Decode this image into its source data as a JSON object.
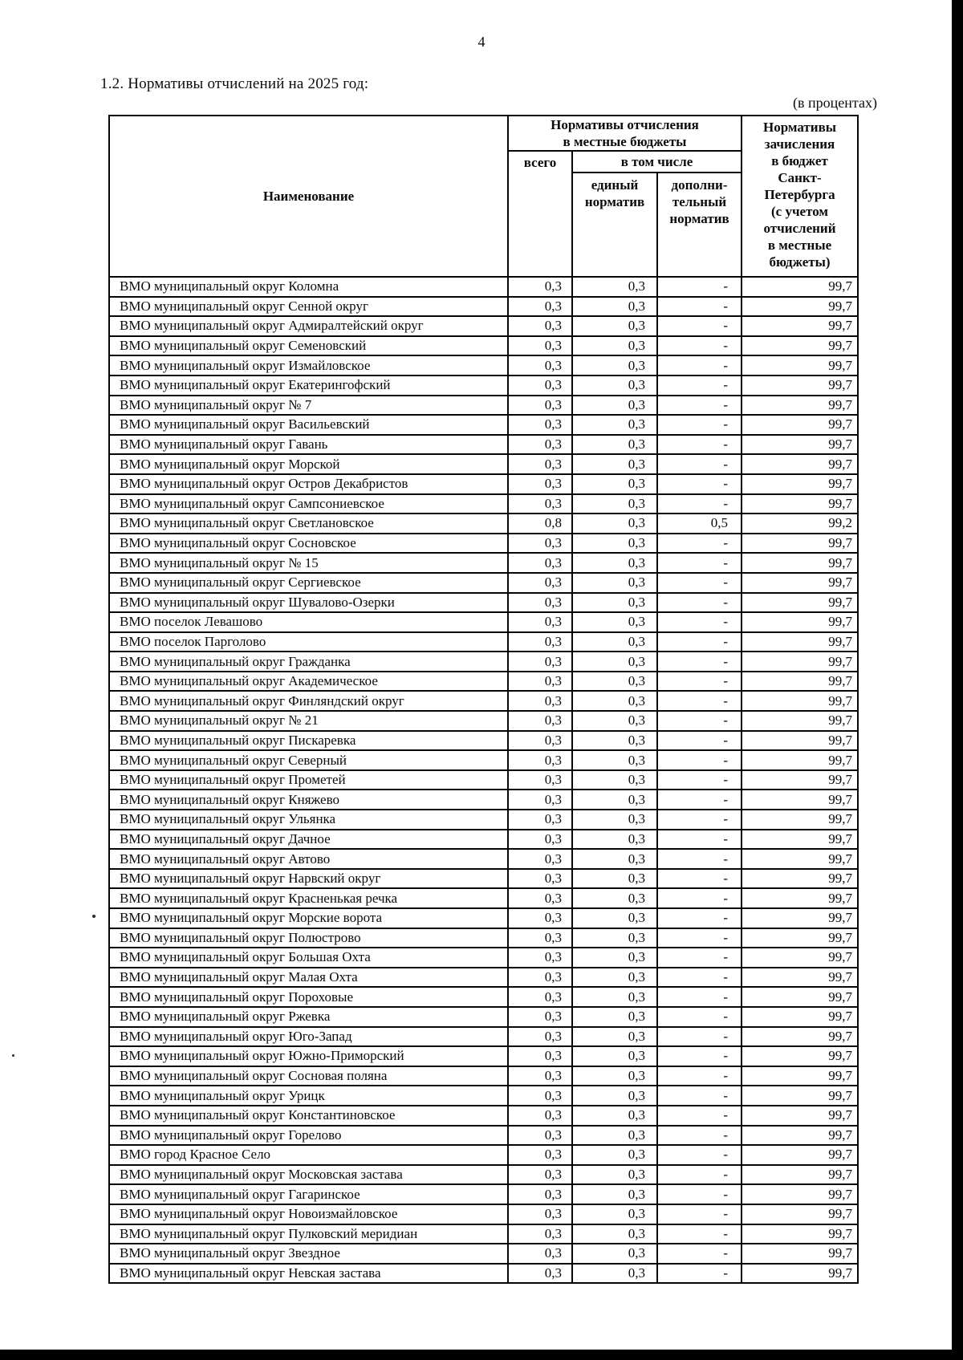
{
  "page": {
    "number": "4",
    "section_heading": "1.2. Нормативы отчислений на 2025 год:",
    "units_note": "(в процентах)"
  },
  "table": {
    "headers": {
      "name": "Наименование",
      "local_group": "Нормативы отчисления\nв местные бюджеты",
      "total": "всего",
      "including": "в том числе",
      "single_norm": "единый\nнорматив",
      "additional_norm": "дополни-\nтельный\nнорматив",
      "spb": "Нормативы\nзачисления\nв бюджет\nСанкт-\nПетербурга\n(с учетом\nотчислений\nв местные\nбюджеты)"
    },
    "rows": [
      {
        "name": "ВМО муниципальный округ Коломна",
        "values": [
          "0,3",
          "0,3",
          "-",
          "99,7"
        ]
      },
      {
        "name": "ВМО муниципальный округ Сенной округ",
        "values": [
          "0,3",
          "0,3",
          "-",
          "99,7"
        ]
      },
      {
        "name": "ВМО муниципальный округ Адмиралтейский округ",
        "values": [
          "0,3",
          "0,3",
          "-",
          "99,7"
        ]
      },
      {
        "name": "ВМО муниципальный округ Семеновский",
        "values": [
          "0,3",
          "0,3",
          "-",
          "99,7"
        ]
      },
      {
        "name": "ВМО муниципальный округ Измайловское",
        "values": [
          "0,3",
          "0,3",
          "-",
          "99,7"
        ]
      },
      {
        "name": "ВМО муниципальный округ Екатерингофский",
        "values": [
          "0,3",
          "0,3",
          "-",
          "99,7"
        ]
      },
      {
        "name": "ВМО муниципальный округ № 7",
        "values": [
          "0,3",
          "0,3",
          "-",
          "99,7"
        ]
      },
      {
        "name": "ВМО муниципальный округ Васильевский",
        "values": [
          "0,3",
          "0,3",
          "-",
          "99,7"
        ]
      },
      {
        "name": "ВМО муниципальный округ Гавань",
        "values": [
          "0,3",
          "0,3",
          "-",
          "99,7"
        ]
      },
      {
        "name": "ВМО муниципальный округ Морской",
        "values": [
          "0,3",
          "0,3",
          "-",
          "99,7"
        ]
      },
      {
        "name": "ВМО муниципальный округ Остров Декабристов",
        "values": [
          "0,3",
          "0,3",
          "-",
          "99,7"
        ]
      },
      {
        "name": "ВМО муниципальный округ Сампсониевское",
        "values": [
          "0,3",
          "0,3",
          "-",
          "99,7"
        ]
      },
      {
        "name": "ВМО муниципальный округ Светлановское",
        "values": [
          "0,8",
          "0,3",
          "0,5",
          "99,2"
        ]
      },
      {
        "name": "ВМО муниципальный округ Сосновское",
        "values": [
          "0,3",
          "0,3",
          "-",
          "99,7"
        ]
      },
      {
        "name": "ВМО муниципальный округ № 15",
        "values": [
          "0,3",
          "0,3",
          "-",
          "99,7"
        ]
      },
      {
        "name": "ВМО муниципальный округ Сергиевское",
        "values": [
          "0,3",
          "0,3",
          "-",
          "99,7"
        ]
      },
      {
        "name": "ВМО муниципальный округ Шувалово-Озерки",
        "values": [
          "0,3",
          "0,3",
          "-",
          "99,7"
        ]
      },
      {
        "name": "ВМО поселок Левашово",
        "values": [
          "0,3",
          "0,3",
          "-",
          "99,7"
        ]
      },
      {
        "name": "ВМО поселок Парголово",
        "values": [
          "0,3",
          "0,3",
          "-",
          "99,7"
        ]
      },
      {
        "name": "ВМО муниципальный округ Гражданка",
        "values": [
          "0,3",
          "0,3",
          "-",
          "99,7"
        ]
      },
      {
        "name": "ВМО муниципальный округ Академическое",
        "values": [
          "0,3",
          "0,3",
          "-",
          "99,7"
        ]
      },
      {
        "name": "ВМО муниципальный округ Финляндский округ",
        "values": [
          "0,3",
          "0,3",
          "-",
          "99,7"
        ]
      },
      {
        "name": "ВМО муниципальный округ № 21",
        "values": [
          "0,3",
          "0,3",
          "-",
          "99,7"
        ]
      },
      {
        "name": "ВМО муниципальный округ Пискаревка",
        "values": [
          "0,3",
          "0,3",
          "-",
          "99,7"
        ]
      },
      {
        "name": "ВМО муниципальный округ Северный",
        "values": [
          "0,3",
          "0,3",
          "-",
          "99,7"
        ]
      },
      {
        "name": "ВМО муниципальный округ Прометей",
        "values": [
          "0,3",
          "0,3",
          "-",
          "99,7"
        ]
      },
      {
        "name": "ВМО муниципальный округ Княжево",
        "values": [
          "0,3",
          "0,3",
          "-",
          "99,7"
        ]
      },
      {
        "name": "ВМО муниципальный округ Ульянка",
        "values": [
          "0,3",
          "0,3",
          "-",
          "99,7"
        ]
      },
      {
        "name": "ВМО муниципальный округ Дачное",
        "values": [
          "0,3",
          "0,3",
          "-",
          "99,7"
        ]
      },
      {
        "name": "ВМО муниципальный округ Автово",
        "values": [
          "0,3",
          "0,3",
          "-",
          "99,7"
        ]
      },
      {
        "name": "ВМО муниципальный округ Нарвский округ",
        "values": [
          "0,3",
          "0,3",
          "-",
          "99,7"
        ]
      },
      {
        "name": "ВМО муниципальный округ Красненькая речка",
        "values": [
          "0,3",
          "0,3",
          "-",
          "99,7"
        ]
      },
      {
        "name": "ВМО муниципальный округ Морские ворота",
        "values": [
          "0,3",
          "0,3",
          "-",
          "99,7"
        ]
      },
      {
        "name": "ВМО муниципальный округ Полюстрово",
        "values": [
          "0,3",
          "0,3",
          "-",
          "99,7"
        ]
      },
      {
        "name": "ВМО муниципальный округ Большая Охта",
        "values": [
          "0,3",
          "0,3",
          "-",
          "99,7"
        ]
      },
      {
        "name": "ВМО муниципальный округ Малая Охта",
        "values": [
          "0,3",
          "0,3",
          "-",
          "99,7"
        ]
      },
      {
        "name": "ВМО муниципальный округ Пороховые",
        "values": [
          "0,3",
          "0,3",
          "-",
          "99,7"
        ]
      },
      {
        "name": "ВМО муниципальный округ Ржевка",
        "values": [
          "0,3",
          "0,3",
          "-",
          "99,7"
        ]
      },
      {
        "name": "ВМО муниципальный округ Юго-Запад",
        "values": [
          "0,3",
          "0,3",
          "-",
          "99,7"
        ]
      },
      {
        "name": "ВМО муниципальный округ Южно-Приморский",
        "values": [
          "0,3",
          "0,3",
          "-",
          "99,7"
        ]
      },
      {
        "name": "ВМО муниципальный округ Сосновая поляна",
        "values": [
          "0,3",
          "0,3",
          "-",
          "99,7"
        ]
      },
      {
        "name": "ВМО муниципальный округ Урицк",
        "values": [
          "0,3",
          "0,3",
          "-",
          "99,7"
        ]
      },
      {
        "name": "ВМО муниципальный округ Константиновское",
        "values": [
          "0,3",
          "0,3",
          "-",
          "99,7"
        ]
      },
      {
        "name": "ВМО муниципальный округ Горелово",
        "values": [
          "0,3",
          "0,3",
          "-",
          "99,7"
        ]
      },
      {
        "name": "ВМО город Красное Село",
        "values": [
          "0,3",
          "0,3",
          "-",
          "99,7"
        ]
      },
      {
        "name": "ВМО муниципальный округ Московская застава",
        "values": [
          "0,3",
          "0,3",
          "-",
          "99,7"
        ]
      },
      {
        "name": "ВМО муниципальный округ Гагаринское",
        "values": [
          "0,3",
          "0,3",
          "-",
          "99,7"
        ]
      },
      {
        "name": "ВМО муниципальный округ Новоизмайловское",
        "values": [
          "0,3",
          "0,3",
          "-",
          "99,7"
        ]
      },
      {
        "name": "ВМО муниципальный округ Пулковский меридиан",
        "values": [
          "0,3",
          "0,3",
          "-",
          "99,7"
        ]
      },
      {
        "name": "ВМО муниципальный округ Звездное",
        "values": [
          "0,3",
          "0,3",
          "-",
          "99,7"
        ]
      },
      {
        "name": "ВМО муниципальный округ Невская застава",
        "values": [
          "0,3",
          "0,3",
          "-",
          "99,7"
        ]
      }
    ]
  }
}
